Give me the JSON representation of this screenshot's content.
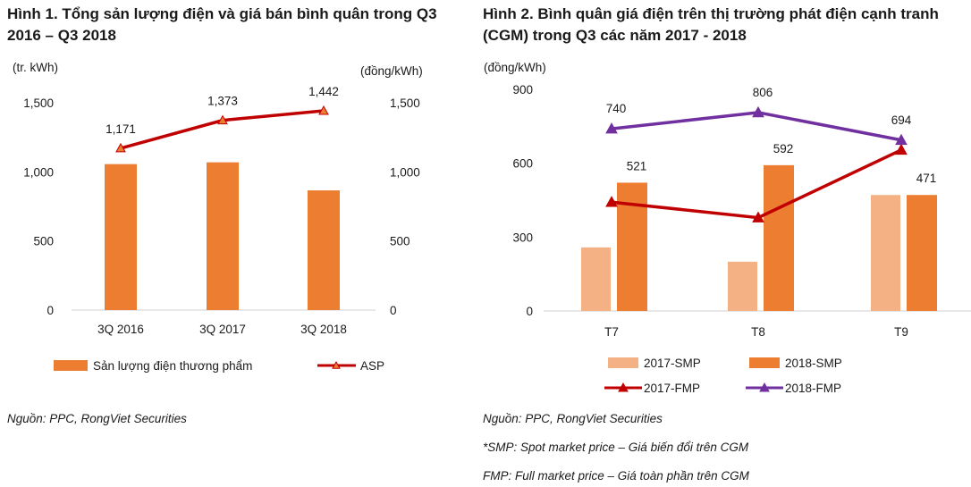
{
  "chart_data": [
    {
      "type": "bar+line",
      "title": "Hình 1. Tổng sản lượng điện và giá bán bình quân trong Q3 2016 – Q3 2018",
      "ylabel_left": "(tr. kWh)",
      "ylabel_right": "(đồng/kWh)",
      "categories": [
        "3Q 2016",
        "3Q 2017",
        "3Q 2018"
      ],
      "ylim_left": [
        0,
        1500
      ],
      "ylim_right": [
        0,
        1500
      ],
      "yticks": [
        "0",
        "500",
        "1,000",
        "1,500"
      ],
      "grid": false,
      "legend_position": "bottom",
      "series": [
        {
          "name": "Sản lượng điện thương phẩm",
          "type": "bar",
          "axis": "left",
          "color": "#ED7D31",
          "values": [
            1056,
            1069,
            866
          ]
        },
        {
          "name": "ASP",
          "type": "line",
          "axis": "right",
          "color": "#C00000",
          "marker": "triangle",
          "values": [
            1171,
            1373,
            1442
          ],
          "labels": [
            "1,171",
            "1,373",
            "1,442"
          ]
        }
      ],
      "source": "Nguồn: PPC, RongViet Securities"
    },
    {
      "type": "bar+line",
      "title": "Hình 2. Bình quân giá điện trên thị trường phát điện cạnh tranh (CGM) trong Q3 các năm 2017 - 2018",
      "ylabel": "(đồng/kWh)",
      "categories": [
        "T7",
        "T8",
        "T9"
      ],
      "ylim": [
        0,
        900
      ],
      "yticks": [
        "0",
        "300",
        "600",
        "900"
      ],
      "grid": false,
      "legend_position": "bottom",
      "series": [
        {
          "name": "2017-SMP",
          "type": "bar",
          "color": "#F4B183",
          "values": [
            258,
            200,
            471
          ]
        },
        {
          "name": "2018-SMP",
          "type": "bar",
          "color": "#ED7D31",
          "values": [
            521,
            592,
            471
          ],
          "labels": [
            "521",
            "592",
            "471"
          ]
        },
        {
          "name": "2017-FMP",
          "type": "line",
          "color": "#C00000",
          "marker": "triangle",
          "values": [
            442,
            379,
            654
          ]
        },
        {
          "name": "2018-FMP",
          "type": "line",
          "color": "#7030A0",
          "marker": "triangle",
          "values": [
            740,
            806,
            694
          ],
          "labels": [
            "740",
            "806",
            "694"
          ]
        }
      ],
      "source": "Nguồn: PPC, RongViet Securities",
      "notes": [
        "*SMP: Spot market price – Giá biến đổi trên CGM",
        "FMP: Full market price – Giá toàn phần trên CGM"
      ]
    }
  ]
}
